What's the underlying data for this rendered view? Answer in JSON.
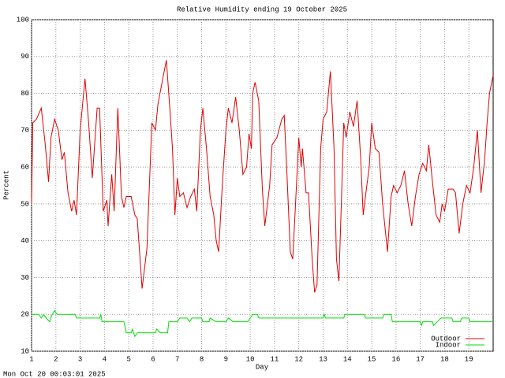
{
  "chart_data": {
    "type": "line",
    "title": "Relative Humidity ending 19 October 2025",
    "x_label": "Day",
    "y_label": "Percent",
    "timestamp": "Mon Oct 20 00:03:01 2025",
    "xlim": [
      1,
      20
    ],
    "xticks": [
      1,
      2,
      3,
      4,
      5,
      6,
      7,
      8,
      9,
      10,
      11,
      12,
      13,
      14,
      15,
      16,
      17,
      18,
      19
    ],
    "ylim": [
      10,
      100
    ],
    "yticks": [
      10,
      20,
      30,
      40,
      50,
      60,
      70,
      80,
      90,
      100
    ],
    "grid": true,
    "legend": "lower right",
    "series": [
      {
        "name": "Outdoor",
        "color": "#e00000",
        "x": [
          1.0,
          1.05,
          1.2,
          1.4,
          1.55,
          1.7,
          1.8,
          1.95,
          2.1,
          2.25,
          2.35,
          2.5,
          2.65,
          2.75,
          2.85,
          3.0,
          3.2,
          3.35,
          3.5,
          3.7,
          3.8,
          3.95,
          4.1,
          4.15,
          4.3,
          4.4,
          4.55,
          4.7,
          4.8,
          4.9,
          5.1,
          5.25,
          5.35,
          5.55,
          5.75,
          5.85,
          5.95,
          6.1,
          6.2,
          6.4,
          6.55,
          6.7,
          6.8,
          6.9,
          7.0,
          7.1,
          7.25,
          7.4,
          7.55,
          7.7,
          7.8,
          7.95,
          8.05,
          8.2,
          8.35,
          8.5,
          8.6,
          8.7,
          8.85,
          9.0,
          9.1,
          9.25,
          9.4,
          9.55,
          9.7,
          9.85,
          9.95,
          10.05,
          10.1,
          10.2,
          10.35,
          10.5,
          10.6,
          10.8,
          10.9,
          11.1,
          11.3,
          11.4,
          11.5,
          11.65,
          11.75,
          11.85,
          12.0,
          12.1,
          12.15,
          12.3,
          12.4,
          12.55,
          12.65,
          12.75,
          12.9,
          13.0,
          13.15,
          13.3,
          13.45,
          13.55,
          13.65,
          13.75,
          13.85,
          13.95,
          14.1,
          14.25,
          14.4,
          14.55,
          14.65,
          14.8,
          14.9,
          15.0,
          15.15,
          15.3,
          15.45,
          15.65,
          15.8,
          15.9,
          16.05,
          16.2,
          16.35,
          16.5,
          16.65,
          16.8,
          16.95,
          17.1,
          17.25,
          17.35,
          17.5,
          17.65,
          17.8,
          17.9,
          18.0,
          18.15,
          18.35,
          18.45,
          18.6,
          18.75,
          18.9,
          19.05,
          19.2,
          19.35,
          19.5,
          19.65,
          19.75,
          19.85,
          20.0
        ],
        "values": [
          50,
          72,
          73,
          76,
          67,
          56,
          68,
          73,
          70,
          62,
          64,
          53,
          48,
          51,
          47,
          70,
          84,
          72,
          57,
          76,
          76,
          48,
          51,
          44,
          58,
          48,
          76,
          52,
          49,
          52,
          52,
          47,
          46,
          27,
          38,
          55,
          72,
          70,
          77,
          84,
          89,
          75,
          65,
          47,
          57,
          52,
          53,
          49,
          52,
          54,
          48,
          70,
          76,
          65,
          52,
          47,
          40,
          37,
          55,
          70,
          76,
          72,
          79,
          70,
          58,
          60,
          69,
          65,
          80,
          83,
          78,
          54,
          44,
          55,
          66,
          68,
          73,
          74,
          60,
          37,
          35,
          48,
          68,
          60,
          65,
          53,
          53,
          35,
          26,
          28,
          65,
          73,
          75,
          86,
          65,
          35,
          29,
          50,
          72,
          68,
          75,
          71,
          78,
          62,
          47,
          55,
          60,
          72,
          65,
          64,
          50,
          37,
          52,
          55,
          53,
          55,
          59,
          50,
          44,
          52,
          58,
          61,
          59,
          66,
          56,
          47,
          45,
          50,
          48,
          54,
          54,
          53,
          42,
          50,
          55,
          53,
          60,
          70,
          53,
          62,
          72,
          80,
          85
        ]
      },
      {
        "name": "Indoor",
        "color": "#00dd00",
        "x": [
          1.0,
          1.3,
          1.4,
          1.5,
          1.6,
          1.75,
          1.85,
          1.95,
          2.05,
          2.8,
          2.85,
          3.8,
          3.85,
          3.9,
          4.8,
          4.9,
          5.1,
          5.15,
          5.25,
          5.35,
          6.1,
          6.15,
          6.3,
          6.6,
          6.65,
          7.0,
          7.1,
          7.4,
          7.5,
          7.6,
          8.0,
          8.05,
          8.3,
          8.35,
          8.6,
          9.0,
          9.1,
          9.3,
          9.9,
          10.0,
          10.1,
          10.3,
          10.35,
          13.0,
          13.05,
          13.1,
          13.85,
          13.9,
          14.7,
          14.75,
          15.45,
          15.5,
          15.8,
          15.85,
          17.0,
          17.05,
          17.1,
          17.5,
          17.55,
          17.7,
          17.85,
          18.3,
          18.35,
          18.65,
          18.7,
          19.0,
          19.05,
          20.0
        ],
        "values": [
          20,
          20,
          19,
          20,
          19,
          18,
          20,
          21,
          20,
          20,
          19,
          19,
          20,
          18,
          18,
          15,
          15,
          16,
          14,
          15,
          15,
          16,
          15,
          15,
          18,
          18,
          19,
          19,
          18,
          19,
          19,
          18,
          18,
          19,
          18,
          18,
          19,
          18,
          18,
          19,
          20,
          20,
          19,
          19,
          20,
          19,
          19,
          20,
          20,
          19,
          19,
          20,
          20,
          18,
          18,
          17,
          18,
          18,
          17,
          18,
          19,
          19,
          18,
          18,
          19,
          19,
          18,
          18
        ]
      }
    ]
  }
}
